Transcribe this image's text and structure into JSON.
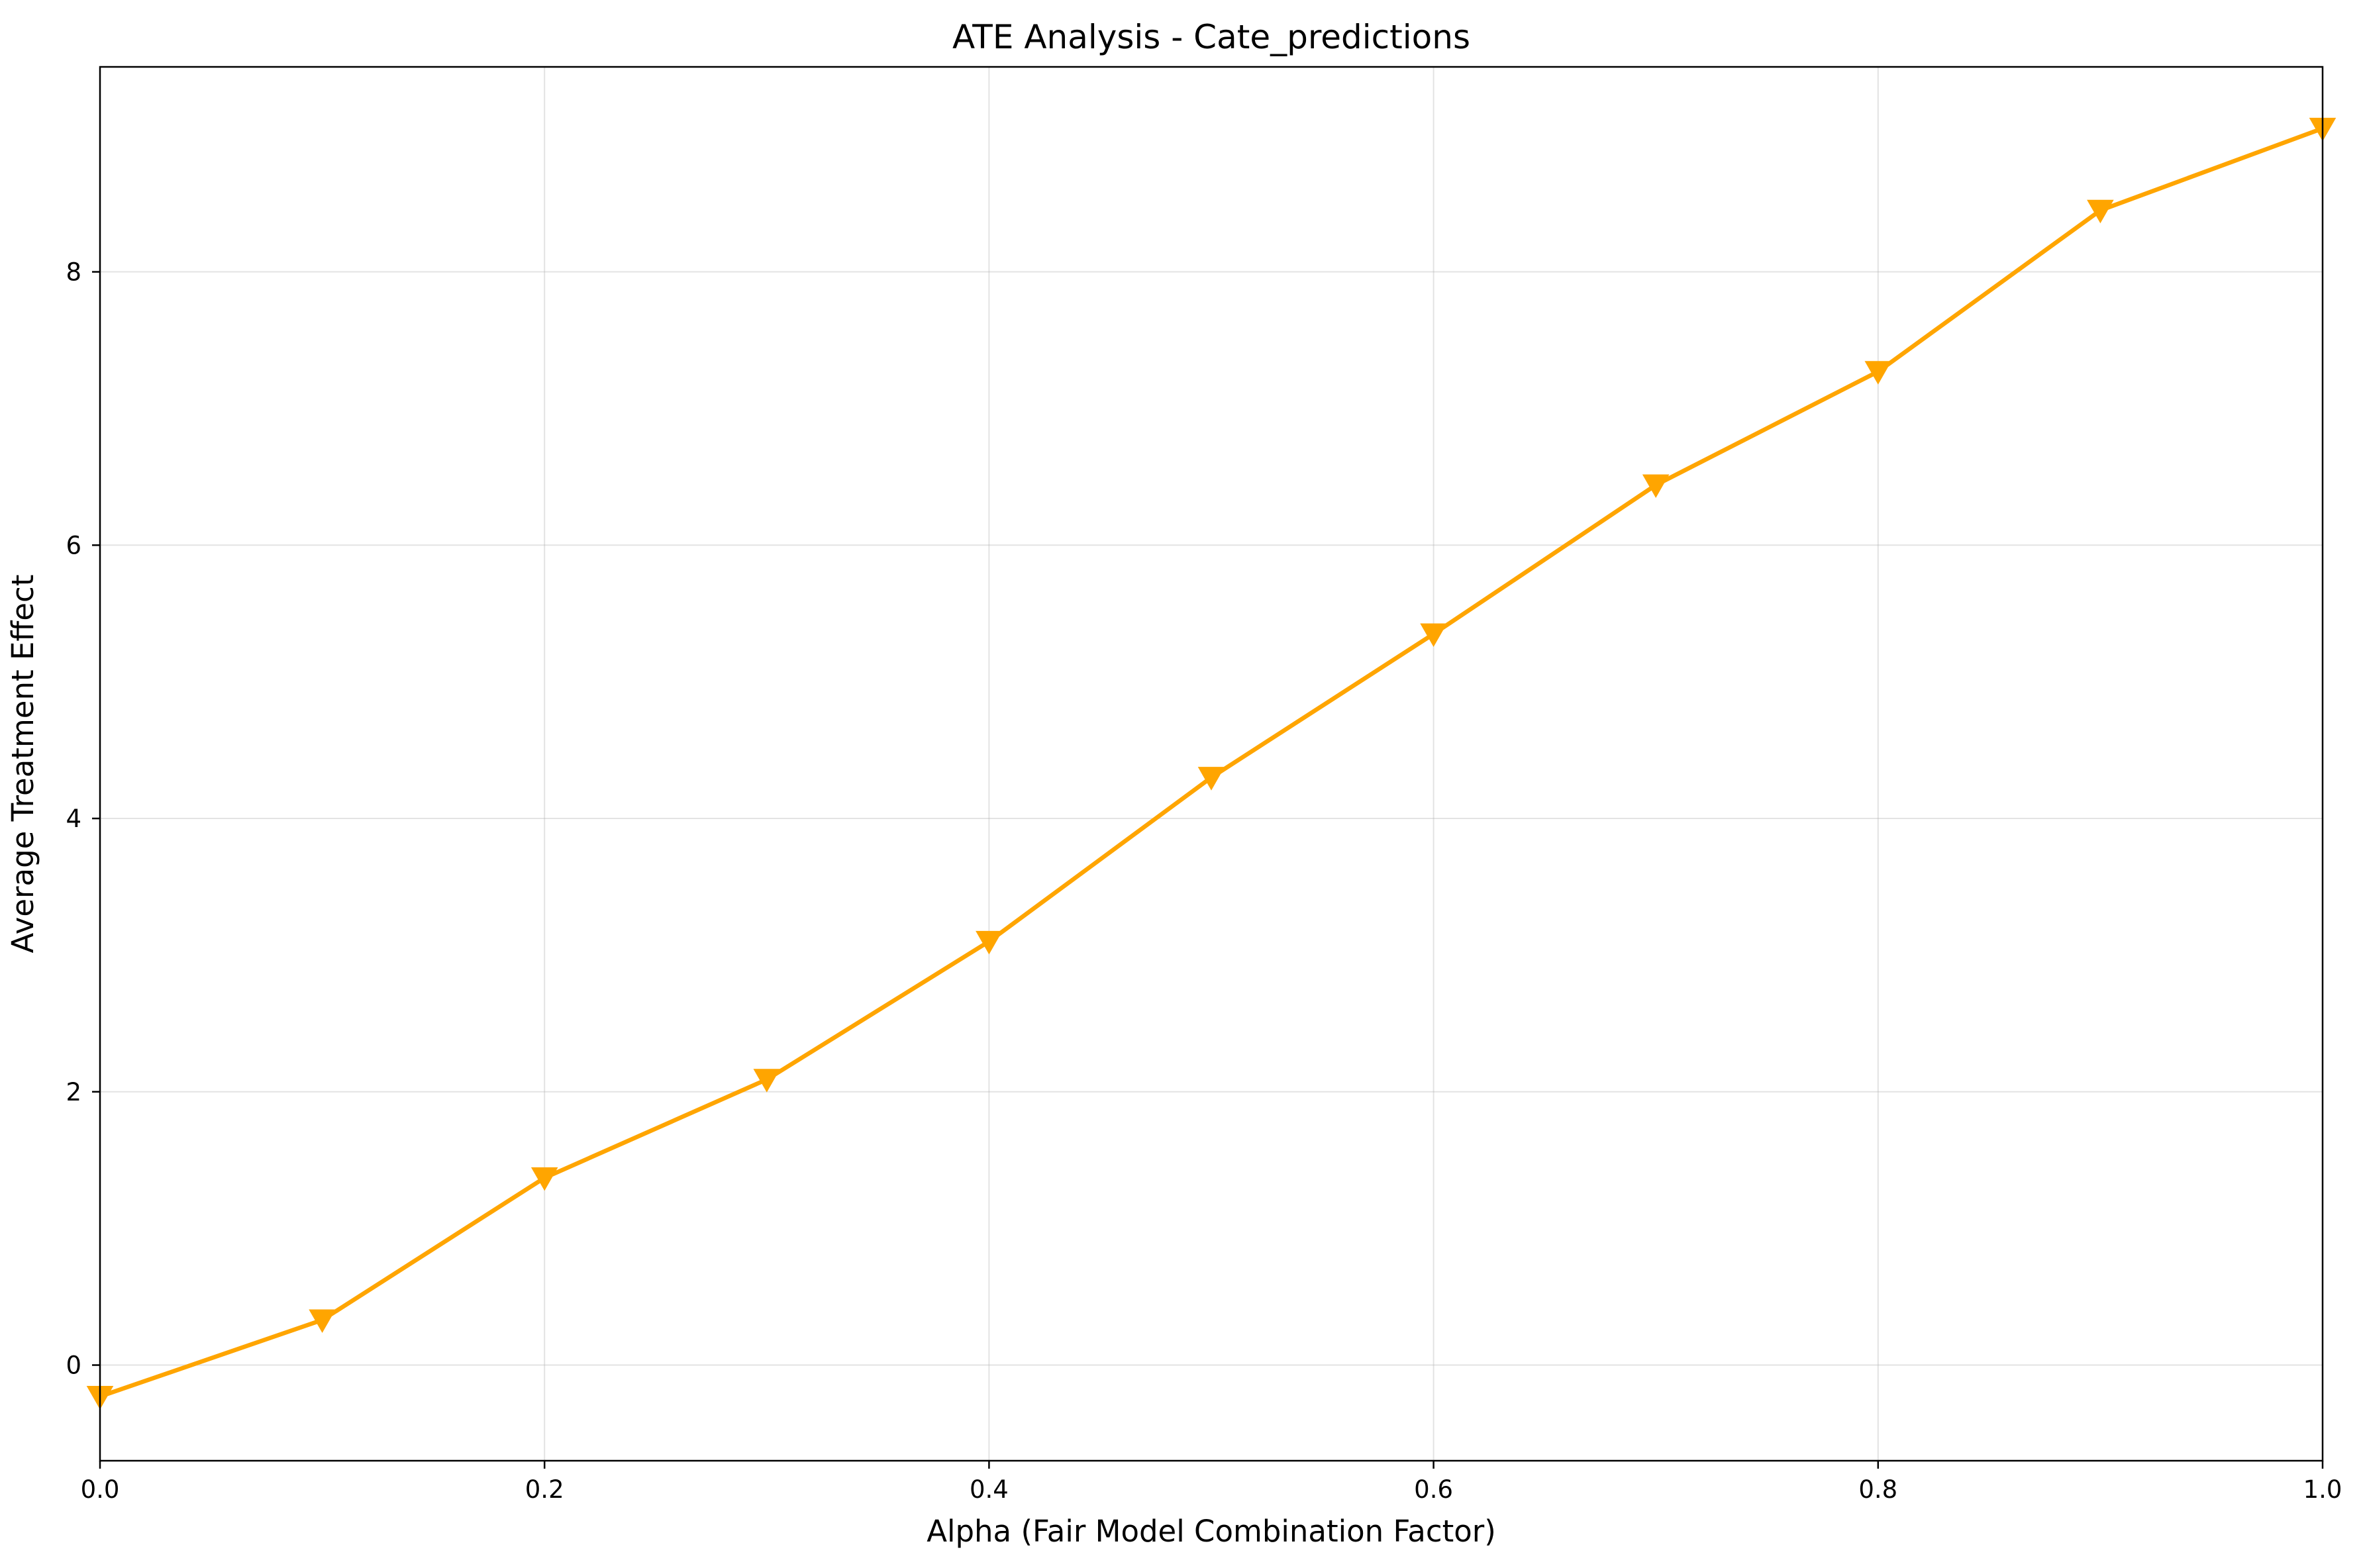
{
  "chart_data": {
    "type": "line",
    "title": "ATE Analysis - Cate_predictions",
    "xlabel": "Alpha (Fair Model Combination Factor)",
    "ylabel": "Average Treatment Effect",
    "xlim": [
      0.0,
      1.0
    ],
    "ylim": [
      -0.7,
      9.5
    ],
    "xticks": [
      0.0,
      0.2,
      0.4,
      0.6,
      0.8,
      1.0
    ],
    "xtick_labels": [
      "0.0",
      "0.2",
      "0.4",
      "0.6",
      "0.8",
      "1.0"
    ],
    "yticks": [
      0,
      2,
      4,
      6,
      8
    ],
    "ytick_labels": [
      "0",
      "2",
      "4",
      "6",
      "8"
    ],
    "grid": true,
    "marker": "triangle-down",
    "series": [
      {
        "color": "#FFA500",
        "x": [
          0.0,
          0.1,
          0.2,
          0.3,
          0.4,
          0.5,
          0.6,
          0.7,
          0.8,
          0.9,
          1.0
        ],
        "y": [
          -0.23,
          0.33,
          1.37,
          2.09,
          3.1,
          4.3,
          5.35,
          6.44,
          7.27,
          8.45,
          9.05
        ]
      }
    ]
  }
}
